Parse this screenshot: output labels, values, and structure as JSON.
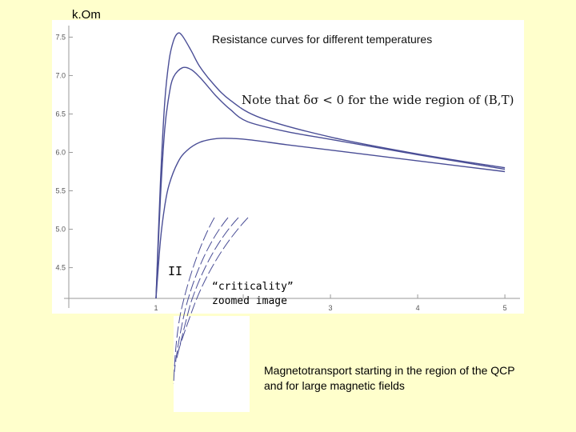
{
  "header": {
    "unit_label": "k.Om"
  },
  "chart_data": {
    "type": "line",
    "title": "Resistance curves for different temperatures",
    "xlabel": "",
    "ylabel": "k.Om",
    "xlim": [
      0,
      5.1
    ],
    "ylim": [
      4.1,
      7.65
    ],
    "x_ticks": [
      1,
      2,
      3,
      4,
      5
    ],
    "x_tick_labels": [
      "1",
      "",
      "3",
      "4",
      "5"
    ],
    "y_ticks": [
      4.5,
      5.0,
      5.5,
      6.0,
      6.5,
      7.0,
      7.5
    ],
    "y_tick_labels": [
      "4.5",
      "5.0",
      "5.5",
      "6.0",
      "6.5",
      "7.0",
      "7.5"
    ],
    "grid": false,
    "series": [
      {
        "x": [
          1.0,
          1.05,
          1.1,
          1.15,
          1.2,
          1.25,
          1.3,
          1.4,
          1.5,
          1.65,
          1.85,
          2.2,
          3.0,
          4.0,
          5.0
        ],
        "y": [
          4.1,
          5.6,
          6.65,
          7.2,
          7.45,
          7.55,
          7.52,
          7.33,
          7.12,
          6.9,
          6.68,
          6.45,
          6.2,
          5.98,
          5.8
        ]
      },
      {
        "x": [
          1.0,
          1.05,
          1.1,
          1.15,
          1.2,
          1.3,
          1.4,
          1.5,
          1.6,
          1.7,
          1.85,
          2.05,
          2.5,
          3.0,
          4.0,
          5.0
        ],
        "y": [
          4.1,
          5.4,
          6.3,
          6.75,
          6.98,
          7.1,
          7.08,
          6.98,
          6.85,
          6.72,
          6.56,
          6.4,
          6.27,
          6.17,
          5.97,
          5.78
        ]
      },
      {
        "x": [
          1.0,
          1.05,
          1.1,
          1.15,
          1.25,
          1.35,
          1.5,
          1.7,
          1.9,
          2.1,
          2.5,
          3.0,
          3.5,
          4.0,
          5.0
        ],
        "y": [
          4.1,
          4.85,
          5.3,
          5.58,
          5.87,
          6.02,
          6.13,
          6.18,
          6.18,
          6.16,
          6.1,
          6.03,
          5.96,
          5.89,
          5.75
        ]
      }
    ],
    "annotations": {
      "note": "Note that δσ < 0 for the wide region of (B,T)",
      "region_marker": "II",
      "inset_caption": [
        "“criticality”",
        "zoomed  image"
      ]
    }
  },
  "footer": {
    "text_lines": [
      "Magnetotransport starting in the region of the QCP",
      "and for large magnetic fields"
    ]
  }
}
